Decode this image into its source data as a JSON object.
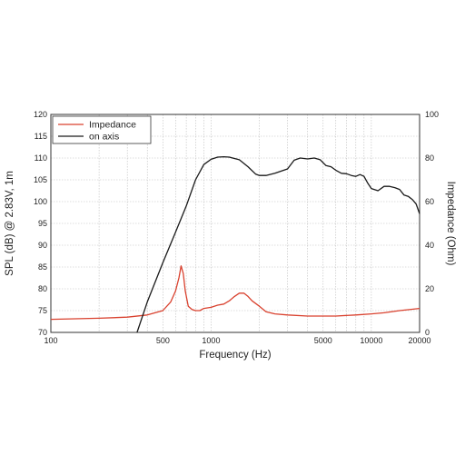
{
  "chart_data": {
    "type": "line",
    "xlabel": "Frequency (Hz)",
    "ylabel_left": "SPL (dB) @ 2.83V, 1m",
    "ylabel_right": "Impedance (Ohm)",
    "x_scale": "log",
    "xlim": [
      100,
      20000
    ],
    "ylim_left": [
      70,
      120
    ],
    "ylim_right": [
      0,
      100
    ],
    "grid": true,
    "legend_position": "top-left",
    "x_tick_labels": [
      "100",
      "500",
      "1000",
      "5000",
      "10000",
      "20000"
    ],
    "x_tick_values": [
      100,
      500,
      1000,
      5000,
      10000,
      20000
    ],
    "y_left_ticks": [
      70,
      75,
      80,
      85,
      90,
      95,
      100,
      105,
      110,
      115,
      120
    ],
    "y_right_ticks": [
      0,
      20,
      40,
      60,
      80,
      100
    ],
    "series": [
      {
        "name": "Impedance",
        "axis": "right",
        "color": "#d9412e",
        "x": [
          100,
          200,
          300,
          400,
          500,
          560,
          600,
          630,
          650,
          670,
          690,
          720,
          760,
          800,
          850,
          900,
          1000,
          1100,
          1200,
          1300,
          1400,
          1500,
          1600,
          1700,
          1800,
          2000,
          2200,
          2500,
          3000,
          4000,
          5000,
          6000,
          8000,
          10000,
          12000,
          15000,
          20000
        ],
        "values": [
          6,
          6.5,
          7,
          8,
          10,
          14,
          19,
          25,
          30.5,
          27,
          19,
          12,
          10.5,
          10,
          10,
          11,
          11.5,
          12.5,
          13,
          14.5,
          16.5,
          18,
          18,
          16.5,
          14.5,
          12,
          9.5,
          8.5,
          8,
          7.5,
          7.5,
          7.5,
          8,
          8.5,
          9,
          10,
          11
        ]
      },
      {
        "name": "on axis",
        "axis": "left",
        "color": "#1a1a1a",
        "x": [
          345,
          400,
          500,
          600,
          700,
          800,
          900,
          1000,
          1100,
          1200,
          1300,
          1500,
          1700,
          1900,
          2000,
          2200,
          2500,
          3000,
          3300,
          3600,
          4000,
          4400,
          4800,
          5200,
          5600,
          6000,
          6500,
          7000,
          7500,
          8000,
          8500,
          9000,
          9500,
          10000,
          11000,
          12000,
          13000,
          14000,
          15000,
          16000,
          17000,
          18000,
          19000,
          20000
        ],
        "values": [
          70,
          77,
          86,
          93,
          99,
          105,
          108.5,
          109.7,
          110.2,
          110.3,
          110.2,
          109.6,
          108,
          106.3,
          106,
          106,
          106.5,
          107.5,
          109.5,
          110,
          109.8,
          110,
          109.6,
          108.3,
          108,
          107.2,
          106.5,
          106.4,
          106,
          105.8,
          106.2,
          105.8,
          104.2,
          103,
          102.5,
          103.5,
          103.5,
          103.2,
          102.8,
          101.5,
          101.2,
          100.5,
          99.5,
          97.2
        ]
      }
    ]
  }
}
